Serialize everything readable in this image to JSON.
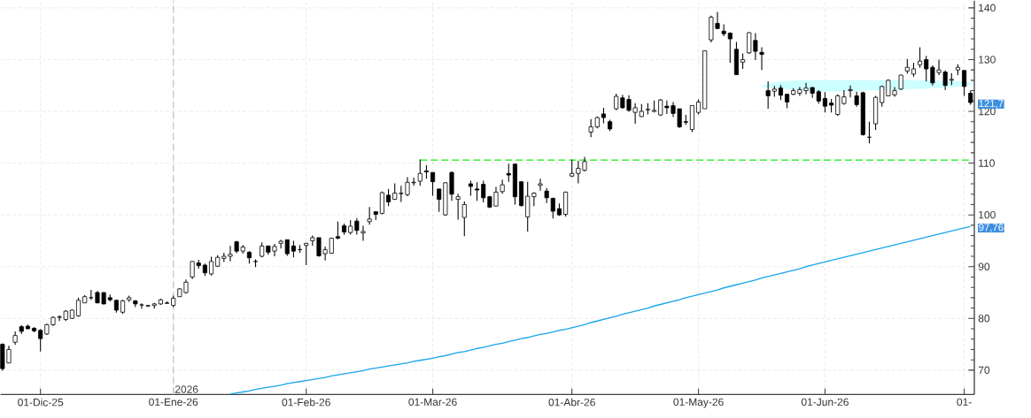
{
  "chart_data": {
    "type": "candlestick",
    "color": "#000000",
    "categories": [
      null,
      null,
      null,
      null,
      null,
      null,
      "01-Dic-25",
      null,
      null,
      null,
      null,
      null,
      null,
      null,
      null,
      null,
      null,
      null,
      null,
      null,
      null,
      null,
      null,
      null,
      null,
      null,
      null,
      "01-Ene-26",
      null,
      null,
      null,
      null,
      null,
      null,
      null,
      null,
      null,
      null,
      null,
      null,
      null,
      null,
      null,
      null,
      null,
      null,
      null,
      null,
      "01-Feb-26",
      null,
      null,
      null,
      null,
      null,
      null,
      null,
      null,
      null,
      null,
      null,
      null,
      null,
      null,
      null,
      null,
      null,
      null,
      null,
      "01-Mar-26",
      null,
      null,
      null,
      null,
      null,
      null,
      null,
      null,
      null,
      null,
      null,
      null,
      null,
      null,
      null,
      null,
      null,
      null,
      null,
      null,
      null,
      "01-Abr-26",
      null,
      null,
      null,
      null,
      null,
      null,
      null,
      null,
      null,
      null,
      null,
      null,
      null,
      null,
      null,
      null,
      null,
      null,
      null,
      "01-May-26",
      null,
      null,
      null,
      null,
      null,
      null,
      null,
      null,
      null,
      null,
      null,
      null,
      null,
      null,
      null,
      null,
      null,
      null,
      null,
      "01-Jun-26",
      null,
      null,
      null,
      null,
      null,
      null,
      null,
      null,
      null,
      null,
      null,
      null,
      null,
      null,
      null,
      null,
      null,
      null,
      null,
      null,
      null,
      "01-",
      null
    ],
    "ohlc": [
      [
        75.0,
        75.2,
        69.9,
        70.3
      ],
      [
        71.4,
        74.7,
        71.4,
        74.0
      ],
      [
        75.4,
        77.5,
        74.9,
        76.7
      ],
      [
        78.4,
        78.7,
        77.0,
        77.5
      ],
      [
        78.5,
        78.8,
        77.9,
        78.0
      ],
      [
        78.1,
        78.3,
        77.3,
        77.6
      ],
      [
        77.7,
        77.9,
        73.6,
        76.1
      ],
      [
        77.0,
        79.0,
        76.8,
        78.8
      ],
      [
        78.8,
        80.4,
        78.5,
        80.2
      ],
      [
        80.2,
        80.6,
        79.5,
        80.3
      ],
      [
        79.8,
        81.6,
        79.5,
        81.4
      ],
      [
        80.0,
        81.7,
        79.9,
        81.6
      ],
      [
        80.5,
        84.0,
        80.3,
        83.5
      ],
      [
        83.0,
        84.5,
        83.0,
        84.2
      ],
      [
        84.0,
        85.5,
        83.6,
        84.0
      ],
      [
        85.0,
        85.3,
        82.9,
        83.0
      ],
      [
        85.0,
        85.0,
        82.7,
        82.8
      ],
      [
        84.0,
        84.6,
        83.3,
        83.6
      ],
      [
        83.5,
        83.6,
        81.1,
        81.6
      ],
      [
        81.2,
        83.6,
        80.9,
        83.4
      ],
      [
        83.6,
        84.4,
        83.2,
        84.0
      ],
      [
        83.4,
        83.5,
        82.2,
        82.8
      ],
      [
        82.6,
        82.9,
        81.9,
        82.6
      ],
      [
        82.4,
        82.6,
        82.2,
        82.5
      ],
      [
        82.5,
        83.0,
        81.9,
        82.8
      ],
      [
        82.8,
        83.8,
        82.6,
        83.6
      ],
      [
        82.9,
        83.3,
        82.8,
        83.0
      ],
      [
        82.5,
        84.4,
        82.2,
        83.9
      ],
      [
        84.2,
        85.8,
        84.2,
        85.7
      ],
      [
        85.0,
        87.5,
        84.8,
        87.0
      ],
      [
        88.0,
        91.0,
        87.6,
        91.0
      ],
      [
        90.7,
        91.3,
        89.6,
        90.2
      ],
      [
        90.3,
        90.6,
        88.2,
        88.8
      ],
      [
        88.6,
        91.9,
        88.3,
        91.0
      ],
      [
        90.1,
        92.2,
        89.9,
        91.8
      ],
      [
        91.6,
        92.7,
        90.9,
        92.0
      ],
      [
        92.0,
        94.0,
        91.0,
        92.4
      ],
      [
        94.8,
        95.0,
        92.6,
        93.0
      ],
      [
        93.0,
        94.2,
        92.5,
        93.8
      ],
      [
        92.8,
        93.0,
        90.6,
        91.7
      ],
      [
        91.0,
        91.4,
        89.9,
        91.0
      ],
      [
        92.0,
        94.7,
        91.8,
        94.0
      ],
      [
        94.0,
        94.0,
        92.3,
        92.8
      ],
      [
        93.0,
        94.4,
        92.0,
        93.9
      ],
      [
        94.5,
        95.2,
        93.5,
        94.9
      ],
      [
        95.2,
        95.2,
        92.1,
        92.5
      ],
      [
        94.0,
        95.0,
        91.8,
        93.0
      ],
      [
        93.3,
        94.2,
        92.7,
        93.3
      ],
      [
        94.1,
        94.6,
        90.3,
        94.5
      ],
      [
        95.0,
        96.0,
        94.0,
        95.6
      ],
      [
        95.6,
        95.6,
        91.9,
        92.1
      ],
      [
        92.5,
        93.9,
        91.2,
        93.3
      ],
      [
        92.6,
        95.6,
        92.5,
        95.5
      ],
      [
        95.8,
        98.7,
        95.3,
        95.5
      ],
      [
        97.9,
        98.3,
        96.2,
        96.7
      ],
      [
        96.6,
        99.0,
        96.2,
        97.8
      ],
      [
        98.8,
        99.4,
        96.2,
        97.0
      ],
      [
        96.5,
        97.9,
        95.0,
        96.8
      ],
      [
        98.7,
        101.5,
        98.1,
        99.2
      ],
      [
        100.6,
        100.7,
        99.0,
        100.1
      ],
      [
        100.3,
        104.5,
        100.1,
        104.3
      ],
      [
        103.8,
        105.0,
        101.7,
        102.5
      ],
      [
        103.0,
        106.1,
        102.9,
        104.2
      ],
      [
        104.1,
        105.6,
        102.5,
        104.2
      ],
      [
        103.9,
        107.3,
        103.6,
        106.3
      ],
      [
        106.2,
        107.2,
        105.6,
        106.3
      ],
      [
        106.5,
        110.7,
        105.6,
        108.0
      ],
      [
        108.5,
        109.6,
        107.0,
        108.3
      ],
      [
        108.2,
        108.2,
        103.7,
        106.4
      ],
      [
        105.0,
        105.0,
        100.6,
        103.0
      ],
      [
        100.0,
        106.3,
        99.8,
        106.2
      ],
      [
        108.2,
        108.4,
        102.7,
        104.0
      ],
      [
        103.0,
        104.1,
        99.1,
        103.5
      ],
      [
        99.5,
        102.6,
        95.9,
        102.0
      ],
      [
        106.0,
        106.6,
        103.7,
        105.5
      ],
      [
        105.0,
        106.3,
        102.7,
        104.8
      ],
      [
        105.9,
        106.6,
        102.4,
        103.3
      ],
      [
        103.5,
        103.7,
        101.3,
        101.5
      ],
      [
        101.7,
        105.4,
        101.7,
        104.4
      ],
      [
        104.5,
        106.8,
        104.1,
        105.8
      ],
      [
        108.0,
        109.9,
        106.4,
        107.7
      ],
      [
        109.8,
        109.9,
        102.0,
        103.5
      ],
      [
        106.4,
        106.4,
        101.6,
        101.8
      ],
      [
        99.6,
        106.4,
        96.8,
        103.6
      ],
      [
        103.5,
        104.4,
        101.7,
        104.2
      ],
      [
        105.7,
        107.0,
        104.7,
        106.0
      ],
      [
        104.6,
        105.2,
        102.3,
        103.3
      ],
      [
        103.2,
        103.3,
        99.3,
        100.7
      ],
      [
        101.2,
        102.2,
        99.8,
        100.0
      ],
      [
        100.1,
        104.5,
        99.7,
        104.4
      ],
      [
        107.5,
        110.7,
        107.3,
        108.0
      ],
      [
        108.0,
        110.5,
        106.1,
        109.0
      ],
      [
        108.6,
        111.2,
        108.4,
        110.3
      ],
      [
        116.0,
        118.5,
        115.0,
        117.0
      ],
      [
        117.0,
        119.0,
        116.7,
        118.8
      ],
      [
        119.5,
        120.7,
        117.7,
        118.8
      ],
      [
        118.0,
        118.4,
        116.2,
        116.6
      ],
      [
        120.5,
        123.4,
        120.2,
        122.9
      ],
      [
        122.6,
        123.2,
        120.5,
        120.7
      ],
      [
        122.3,
        123.1,
        119.9,
        120.2
      ],
      [
        119.8,
        121.6,
        117.6,
        120.7
      ],
      [
        119.0,
        121.4,
        118.9,
        120.0
      ],
      [
        120.3,
        121.6,
        119.4,
        120.4
      ],
      [
        120.0,
        122.1,
        119.8,
        120.2
      ],
      [
        119.3,
        122.4,
        119.1,
        122.2
      ],
      [
        121.0,
        122.1,
        119.5,
        120.7
      ],
      [
        121.1,
        121.8,
        118.9,
        119.6
      ],
      [
        120.5,
        120.5,
        116.8,
        117.0
      ],
      [
        118.0,
        119.3,
        117.4,
        117.9
      ],
      [
        116.5,
        121.1,
        116.0,
        121.1
      ],
      [
        119.8,
        122.3,
        119.4,
        121.8
      ],
      [
        120.5,
        131.8,
        120.5,
        131.7
      ],
      [
        133.8,
        138.5,
        133.3,
        138.2
      ],
      [
        137.0,
        139.2,
        135.9,
        136.0
      ],
      [
        135.5,
        136.8,
        134.5,
        135.0
      ],
      [
        135.1,
        135.3,
        129.4,
        134.0
      ],
      [
        132.0,
        133.4,
        127.0,
        127.1
      ],
      [
        129.5,
        131.2,
        128.2,
        130.0
      ],
      [
        131.3,
        135.3,
        131.1,
        135.2
      ],
      [
        133.7,
        135.1,
        129.9,
        131.6
      ],
      [
        131.4,
        132.4,
        128.0,
        131.0
      ],
      [
        124.0,
        125.8,
        120.5,
        123.0
      ],
      [
        123.9,
        124.9,
        122.8,
        124.3
      ],
      [
        124.5,
        125.1,
        122.2,
        123.1
      ],
      [
        123.3,
        123.4,
        120.6,
        121.8
      ],
      [
        123.3,
        124.5,
        123.1,
        124.0
      ],
      [
        123.5,
        124.7,
        123.0,
        124.2
      ],
      [
        124.0,
        125.5,
        123.3,
        124.5
      ],
      [
        124.6,
        124.7,
        122.6,
        123.5
      ],
      [
        123.8,
        124.1,
        121.5,
        122.0
      ],
      [
        122.5,
        123.7,
        119.8,
        121.0
      ],
      [
        121.6,
        122.4,
        119.8,
        121.2
      ],
      [
        119.4,
        123.3,
        119.1,
        123.0
      ],
      [
        121.5,
        124.1,
        121.3,
        122.8
      ],
      [
        124.0,
        125.0,
        122.7,
        124.2
      ],
      [
        123.0,
        123.8,
        120.9,
        121.3
      ],
      [
        123.6,
        123.8,
        115.3,
        115.5
      ],
      [
        115.0,
        118.0,
        113.8,
        115.0
      ],
      [
        117.6,
        123.0,
        116.4,
        122.7
      ],
      [
        121.7,
        125.0,
        120.9,
        124.8
      ],
      [
        123.0,
        126.2,
        123.0,
        126.0
      ],
      [
        123.2,
        124.7,
        122.8,
        124.0
      ],
      [
        124.3,
        127.1,
        124.1,
        127.0
      ],
      [
        127.8,
        130.1,
        127.3,
        128.5
      ],
      [
        127.2,
        129.4,
        126.7,
        128.2
      ],
      [
        129.0,
        132.4,
        128.4,
        129.7
      ],
      [
        130.0,
        130.7,
        125.8,
        128.2
      ],
      [
        128.5,
        128.9,
        125.0,
        125.5
      ],
      [
        127.5,
        130.0,
        127.0,
        128.0
      ],
      [
        127.6,
        127.9,
        124.1,
        125.0
      ],
      [
        126.0,
        127.4,
        125.1,
        126.2
      ],
      [
        128.0,
        129.1,
        127.0,
        128.5
      ],
      [
        127.9,
        127.9,
        123.0,
        124.8
      ],
      [
        123.5,
        124.0,
        121.3,
        121.7
      ]
    ],
    "series": [
      {
        "type": "line",
        "color": "#ccffff",
        "values": [
          null,
          null,
          null,
          null,
          null,
          null,
          null,
          null,
          null,
          null,
          null,
          null,
          null,
          null,
          null,
          null,
          null,
          null,
          null,
          null,
          null,
          null,
          null,
          null,
          null,
          null,
          null,
          null,
          null,
          null,
          null,
          null,
          null,
          null,
          null,
          null,
          null,
          null,
          null,
          null,
          null,
          null,
          null,
          null,
          null,
          null,
          null,
          null,
          null,
          null,
          null,
          null,
          null,
          null,
          null,
          null,
          null,
          null,
          null,
          null,
          null,
          null,
          null,
          null,
          null,
          null,
          null,
          null,
          null,
          null,
          null,
          null,
          null,
          null,
          null,
          null,
          null,
          null,
          null,
          null,
          null,
          null,
          null,
          null,
          null,
          null,
          null,
          null,
          null,
          null,
          null,
          null,
          null,
          null,
          null,
          null,
          null,
          null,
          null,
          null,
          null,
          null,
          null,
          null,
          null,
          null,
          null,
          null,
          null,
          null,
          null,
          null,
          null,
          null,
          null,
          null,
          null,
          null,
          null,
          null,
          null,
          null,
          null,
          null,
          null,
          null,
          null,
          null,
          null,
          null,
          null,
          null,
          null,
          null,
          null,
          null,
          null,
          null,
          null,
          null,
          null,
          null,
          null,
          null,
          null,
          null,
          null,
          null,
          null,
          null,
          null,
          null,
          null,
          null
        ],
        "upper": [
          null,
          null,
          null,
          null,
          null,
          null,
          null,
          null,
          null,
          null,
          null,
          null,
          null,
          null,
          null,
          null,
          null,
          null,
          null,
          null,
          null,
          null,
          null,
          null,
          null,
          null,
          null,
          null,
          null,
          null,
          null,
          null,
          null,
          null,
          null,
          null,
          null,
          null,
          null,
          null,
          null,
          null,
          null,
          null,
          null,
          null,
          null,
          null,
          null,
          null,
          null,
          null,
          null,
          null,
          null,
          null,
          null,
          null,
          null,
          null,
          null,
          null,
          null,
          null,
          null,
          null,
          null,
          null,
          null,
          null,
          null,
          null,
          null,
          null,
          null,
          null,
          null,
          null,
          null,
          null,
          null,
          null,
          null,
          null,
          null,
          null,
          null,
          null,
          null,
          null,
          null,
          null,
          null,
          null,
          null,
          null,
          null,
          null,
          null,
          null,
          null,
          null,
          null,
          null,
          null,
          null,
          null,
          null,
          null,
          null,
          null,
          null,
          null,
          null,
          null,
          null,
          null,
          null,
          null,
          null,
          125.0,
          125.3,
          125.6,
          125.8,
          125.9,
          125.9,
          126.0,
          126.0,
          126.0,
          126.0,
          126.0,
          126.0,
          126.0,
          126.0,
          126.0,
          126.0,
          126.0,
          126.0,
          126.0,
          126.0,
          126.0,
          126.0,
          126.0,
          126.0,
          126.0,
          126.0,
          126.0,
          126.0,
          125.9,
          125.9,
          125.9,
          125.8,
          125.7,
          125.6
        ],
        "lower": [
          null,
          null,
          null,
          null,
          null,
          null,
          null,
          null,
          null,
          null,
          null,
          null,
          null,
          null,
          null,
          null,
          null,
          null,
          null,
          null,
          null,
          null,
          null,
          null,
          null,
          null,
          null,
          null,
          null,
          null,
          null,
          null,
          null,
          null,
          null,
          null,
          null,
          null,
          null,
          null,
          null,
          null,
          null,
          null,
          null,
          null,
          null,
          null,
          null,
          null,
          null,
          null,
          null,
          null,
          null,
          null,
          null,
          null,
          null,
          null,
          null,
          null,
          null,
          null,
          null,
          null,
          null,
          null,
          null,
          null,
          null,
          null,
          null,
          null,
          null,
          null,
          null,
          null,
          null,
          null,
          null,
          null,
          null,
          null,
          null,
          null,
          null,
          null,
          null,
          null,
          null,
          null,
          null,
          null,
          null,
          null,
          null,
          null,
          null,
          null,
          null,
          null,
          null,
          null,
          null,
          null,
          null,
          null,
          null,
          null,
          null,
          null,
          null,
          null,
          null,
          null,
          null,
          null,
          null,
          null,
          124.7,
          124.6,
          124.5,
          124.4,
          124.3,
          124.2,
          124.1,
          124.0,
          123.9,
          123.9,
          123.8,
          123.8,
          123.8,
          123.9,
          123.9,
          123.9,
          124.0,
          124.0,
          124.0,
          124.1,
          124.1,
          124.1,
          124.2,
          124.2,
          124.3,
          124.3,
          124.4,
          124.5,
          124.5,
          124.6,
          124.7,
          124.8,
          124.9,
          125.0
        ]
      },
      {
        "type": "line",
        "color": "#17a6ea",
        "values": [
          null,
          null,
          null,
          null,
          null,
          null,
          null,
          null,
          null,
          null,
          null,
          null,
          null,
          null,
          null,
          null,
          null,
          null,
          null,
          null,
          null,
          null,
          null,
          null,
          null,
          null,
          null,
          null,
          null,
          null,
          null,
          null,
          null,
          null,
          null,
          null,
          65.4,
          65.6,
          65.8,
          66.0,
          66.3,
          66.5,
          66.7,
          66.9,
          67.1,
          67.4,
          67.6,
          67.8,
          68.0,
          68.2,
          68.4,
          68.6,
          68.9,
          69.1,
          69.3,
          69.5,
          69.7,
          69.9,
          70.2,
          70.4,
          70.6,
          70.8,
          71.0,
          71.2,
          71.4,
          71.7,
          71.9,
          72.1,
          72.3,
          72.6,
          72.8,
          73.1,
          73.4,
          73.6,
          73.9,
          74.2,
          74.4,
          74.7,
          75.0,
          75.2,
          75.5,
          75.8,
          76.1,
          76.3,
          76.6,
          76.9,
          77.1,
          77.4,
          77.7,
          77.9,
          78.2,
          78.5,
          78.8,
          79.2,
          79.5,
          79.8,
          80.1,
          80.4,
          80.8,
          81.1,
          81.4,
          81.7,
          82.0,
          82.4,
          82.7,
          83.0,
          83.3,
          83.6,
          84.0,
          84.3,
          84.6,
          84.9,
          85.2,
          85.5,
          85.9,
          86.2,
          86.5,
          86.8,
          87.1,
          87.4,
          87.8,
          88.1,
          88.4,
          88.7,
          89.0,
          89.3,
          89.6,
          90.0,
          90.3,
          90.6,
          90.9,
          91.2,
          91.5,
          91.8,
          92.1,
          92.4,
          92.7,
          93.0,
          93.3,
          93.6,
          93.9,
          94.2,
          94.5,
          94.8,
          95.1,
          95.4,
          95.7,
          96.0,
          96.3,
          96.6,
          96.9,
          97.2,
          97.5,
          97.76
        ]
      },
      {
        "type": "line",
        "color": "#11ee11",
        "line_style": "dashed",
        "values": [
          null,
          null,
          null,
          null,
          null,
          null,
          null,
          null,
          null,
          null,
          null,
          null,
          null,
          null,
          null,
          null,
          null,
          null,
          null,
          null,
          null,
          null,
          null,
          null,
          null,
          null,
          null,
          null,
          null,
          null,
          null,
          null,
          null,
          null,
          null,
          null,
          null,
          null,
          null,
          null,
          null,
          null,
          null,
          null,
          null,
          null,
          null,
          null,
          null,
          null,
          null,
          null,
          null,
          null,
          null,
          null,
          null,
          null,
          null,
          null,
          null,
          null,
          null,
          null,
          null,
          null,
          110.6,
          110.6,
          110.6,
          110.6,
          110.6,
          110.6,
          110.6,
          110.6,
          110.6,
          110.6,
          110.6,
          110.6,
          110.6,
          110.6,
          110.6,
          110.6,
          110.6,
          110.6,
          110.6,
          110.6,
          110.6,
          110.6,
          110.6,
          110.6,
          110.6,
          110.6,
          110.6,
          110.6,
          110.6,
          110.6,
          110.6,
          110.6,
          110.6,
          110.6,
          110.6,
          110.6,
          110.6,
          110.6,
          110.6,
          110.6,
          110.6,
          110.6,
          110.6,
          110.6,
          110.6,
          110.6,
          110.6,
          110.6,
          110.6,
          110.6,
          110.6,
          110.6,
          110.6,
          110.6,
          110.6,
          110.6,
          110.6,
          110.6,
          110.6,
          110.6,
          110.6,
          110.6,
          110.6,
          110.6,
          110.6,
          110.6,
          110.6,
          110.6,
          110.6,
          110.6,
          110.6,
          110.6,
          110.6,
          110.6,
          110.6,
          110.6,
          110.6,
          110.6,
          110.6,
          110.6,
          110.6,
          110.6,
          110.6,
          110.6,
          110.6,
          110.6,
          110.6,
          110.6
        ]
      }
    ],
    "ylim": [
      65.3,
      141.4
    ],
    "yticks": [
      70,
      80,
      90,
      {
        "value": 97.76,
        "label": "97,76"
      },
      100,
      110,
      120,
      {
        "value": 121.7,
        "label": "121,7"
      },
      130,
      140
    ],
    "grid": true,
    "ref_lines": [
      {
        "axis": "x",
        "value": "01-Ene-26",
        "label": "2026",
        "color": "#c8c8c8",
        "line_style": "dashed"
      }
    ]
  }
}
